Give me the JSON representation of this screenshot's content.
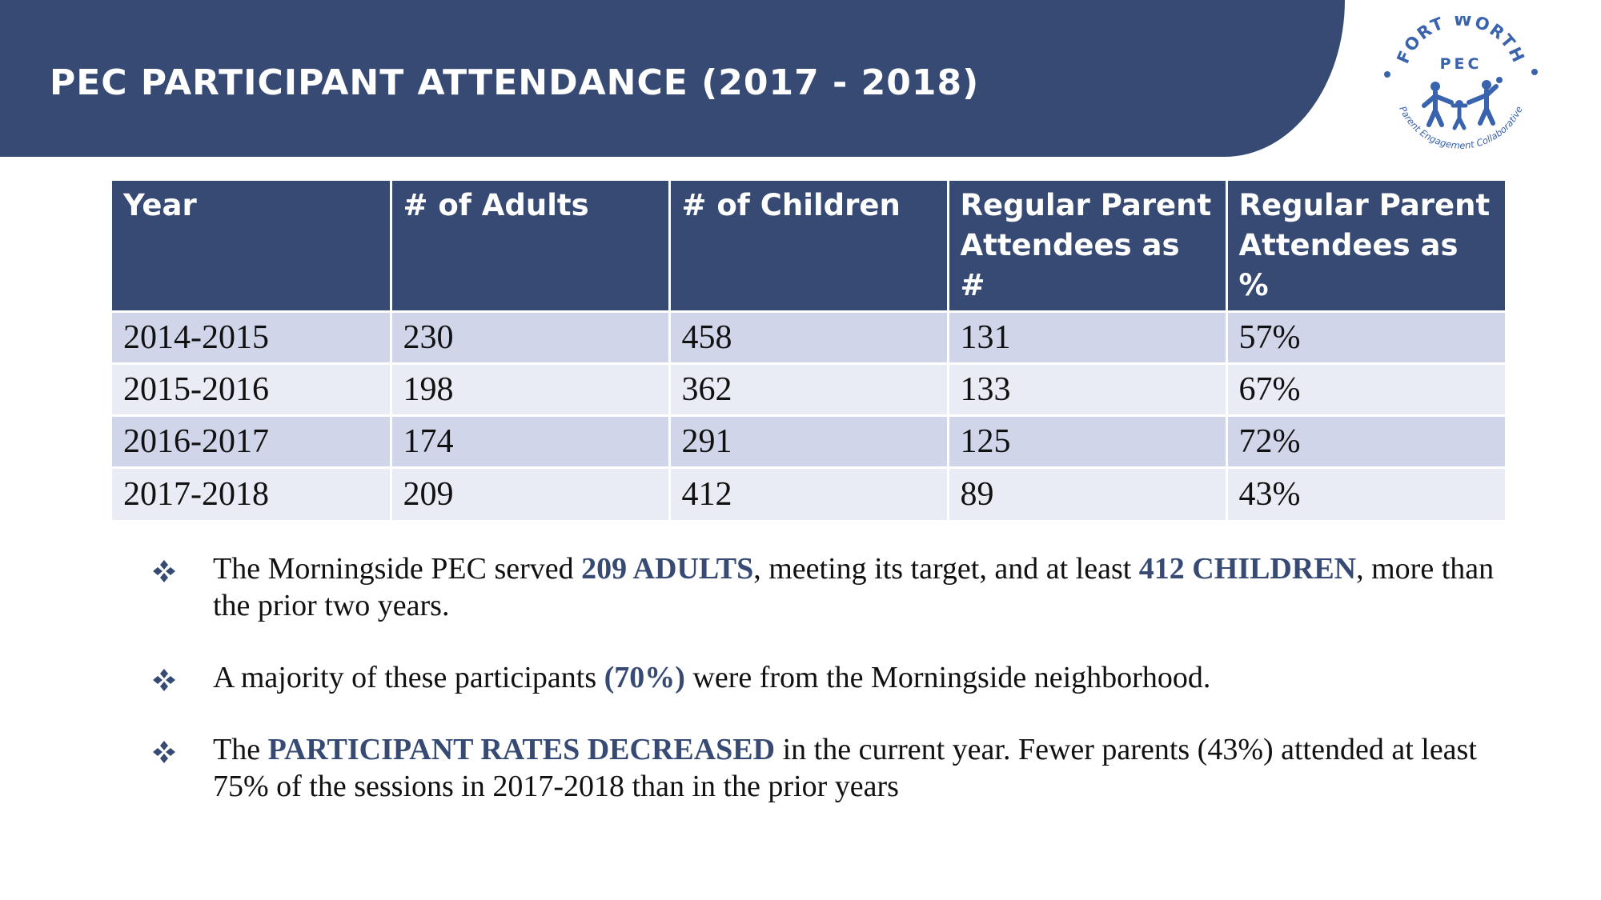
{
  "title": "PEC PARTICIPANT ATTENDANCE (2017 - 2018)",
  "logo": {
    "top_text": "FORT WORTH",
    "middle_text": "PEC",
    "bottom_text": "Parent Engagement Collaborative"
  },
  "table": {
    "headers": [
      "Year",
      "# of Adults",
      "# of Children",
      "Regular Parent Attendees as #",
      "Regular Parent Attendees as %"
    ],
    "rows": [
      [
        "2014-2015",
        "230",
        "458",
        "131",
        "57%"
      ],
      [
        "2015-2016",
        "198",
        "362",
        "133",
        "67%"
      ],
      [
        "2016-2017",
        "174",
        "291",
        "125",
        "72%"
      ],
      [
        "2017-2018",
        "209",
        "412",
        "89",
        "43%"
      ]
    ]
  },
  "bullets": [
    {
      "parts": [
        {
          "text": "The Morningside PEC served ",
          "em": false
        },
        {
          "text": "209 ADULTS",
          "em": true
        },
        {
          "text": ", meeting its target, and at least ",
          "em": false
        },
        {
          "text": "412 CHILDREN",
          "em": true
        },
        {
          "text": ", more than the prior two years.",
          "em": false
        }
      ]
    },
    {
      "parts": [
        {
          "text": "A majority of these participants ",
          "em": false
        },
        {
          "text": "(70%)",
          "em": true
        },
        {
          "text": " were from the Morningside neighborhood.",
          "em": false
        }
      ]
    },
    {
      "parts": [
        {
          "text": "The ",
          "em": false
        },
        {
          "text": "PARTICIPANT RATES DECREASED",
          "em": true
        },
        {
          "text": " in the current year. Fewer parents (43%) attended at least 75% of the sessions in 2017-2018 than in the prior years",
          "em": false
        }
      ]
    }
  ],
  "colors": {
    "brand_navy": "#364a73",
    "row_dark": "#d0d5e9",
    "row_light": "#e9ebf5",
    "logo_blue": "#3a63ad"
  },
  "icons": [
    "diamond-bullet-icon",
    "family-icon"
  ]
}
